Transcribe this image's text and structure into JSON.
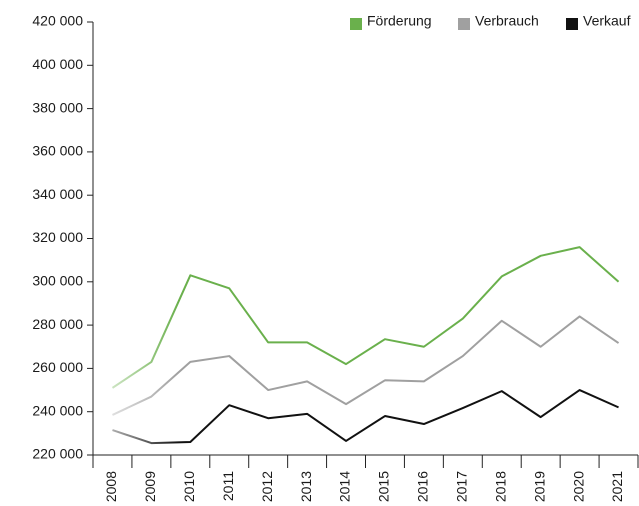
{
  "chart_data": {
    "type": "line",
    "categories": [
      "2008",
      "2009",
      "2010",
      "2011",
      "2012",
      "2013",
      "2014",
      "2015",
      "2016",
      "2017",
      "2018",
      "2019",
      "2020",
      "2021"
    ],
    "series": [
      {
        "name": "Förderung",
        "color": "#6ab04c",
        "values": [
          251000,
          263000,
          303000,
          297000,
          272000,
          272000,
          262000,
          273500,
          270000,
          283000,
          302500,
          312000,
          316000,
          300000
        ]
      },
      {
        "name": "Verbrauch",
        "color": "#a0a0a0",
        "values": [
          238500,
          247000,
          263000,
          265700,
          250000,
          254000,
          243500,
          254500,
          254000,
          265700,
          282000,
          270000,
          284000,
          271700
        ]
      },
      {
        "name": "Verkauf",
        "color": "#111111",
        "values": [
          231500,
          225500,
          226000,
          243000,
          237000,
          239000,
          226500,
          238000,
          234300,
          241700,
          249500,
          237500,
          250000,
          242000
        ]
      }
    ],
    "ylim": [
      220000,
      420000
    ],
    "yticks": [
      {
        "value": 220000,
        "label": "220 000"
      },
      {
        "value": 240000,
        "label": "240 000"
      },
      {
        "value": 260000,
        "label": "260 000"
      },
      {
        "value": 280000,
        "label": "280 000"
      },
      {
        "value": 300000,
        "label": "300 000"
      },
      {
        "value": 320000,
        "label": "320 000"
      },
      {
        "value": 340000,
        "label": "340 000"
      },
      {
        "value": 360000,
        "label": "360 000"
      },
      {
        "value": 380000,
        "label": "380 000"
      },
      {
        "value": 400000,
        "label": "400 000"
      },
      {
        "value": 420000,
        "label": "420 000"
      }
    ],
    "legend": "top-right",
    "fade_left": true
  }
}
